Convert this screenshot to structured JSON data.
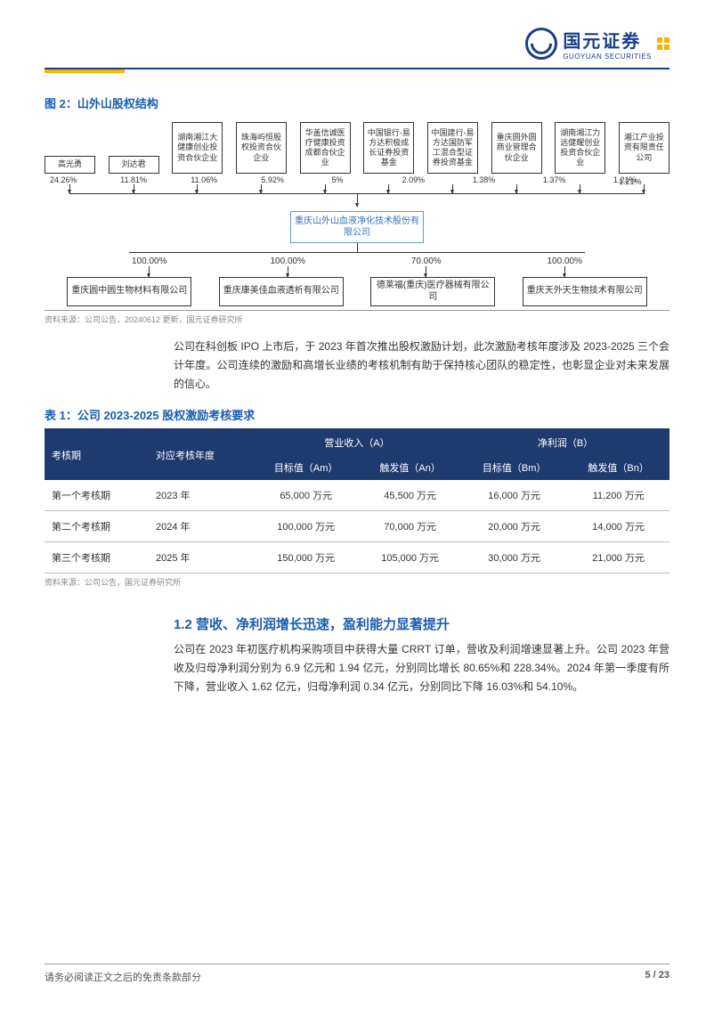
{
  "logo": {
    "cn": "国元证券",
    "en": "GUOYUAN SECURITIES"
  },
  "figure2": {
    "title": "图 2：山外山股权结构",
    "shareholders": [
      {
        "name": "高光勇",
        "pct": "24.26%"
      },
      {
        "name": "刘达君",
        "pct": "11.81%"
      },
      {
        "name": "湖南湘江大健康创业投资合伙企业",
        "pct": "11.06%"
      },
      {
        "name": "珠海屿恒股权投资合伙企业",
        "pct": "5.92%"
      },
      {
        "name": "华盖信诚医疗健康投资成都合伙企业",
        "pct": "5%"
      },
      {
        "name": "中国银行-易方达积极成长证券投资基金",
        "pct": "2.09%"
      },
      {
        "name": "中国建行-易方达国防军工混合型证券投资基金",
        "pct": "1.38%"
      },
      {
        "name": "重庆圆外圆商业管理合伙企业",
        "pct": "1.37%"
      },
      {
        "name": "湖南湘江力远健耀创业投资合伙企业",
        "pct": "1.21%"
      },
      {
        "name": "湘江产业投资有限责任公司",
        "pct": "1.21%"
      }
    ],
    "center": "重庆山外山血液净化技术股份有限公司",
    "subs": [
      {
        "name": "重庆圆中圆生物材料有限公司",
        "pct": "100.00%"
      },
      {
        "name": "重庆康美佳血液透析有限公司",
        "pct": "100.00%"
      },
      {
        "name": "德莱福(重庆)医疗器械有限公司",
        "pct": "70.00%"
      },
      {
        "name": "重庆天外天生物技术有限公司",
        "pct": "100.00%"
      }
    ],
    "source": "资料来源：公司公告，20240612 更新，国元证券研究所"
  },
  "para1": "公司在科创板 IPO 上市后，于 2023 年首次推出股权激励计划，此次激励考核年度涉及 2023-2025 三个会计年度。公司连续的激励和高增长业绩的考核机制有助于保持核心团队的稳定性，也彰显企业对未来发展的信心。",
  "table1": {
    "title": "表 1：公司 2023-2025 股权激励考核要求",
    "header1": [
      "考核期",
      "对应考核年度",
      "营业收入（A）",
      "净利润（B）"
    ],
    "header2": [
      "目标值（Am）",
      "触发值（An）",
      "目标值（Bm）",
      "触发值（Bn）"
    ],
    "rows": [
      [
        "第一个考核期",
        "2023 年",
        "65,000 万元",
        "45,500 万元",
        "16,000 万元",
        "11,200 万元"
      ],
      [
        "第二个考核期",
        "2024 年",
        "100,000 万元",
        "70,000 万元",
        "20,000 万元",
        "14,000 万元"
      ],
      [
        "第三个考核期",
        "2025 年",
        "150,000 万元",
        "105,000 万元",
        "30,000 万元",
        "21,000 万元"
      ]
    ],
    "source": "资料来源：公司公告，国元证券研究所"
  },
  "section12": {
    "heading": "1.2 营收、净利润增长迅速，盈利能力显著提升",
    "body": "公司在 2023 年初医疗机构采购项目中获得大量 CRRT 订单，营收及利润增速显著上升。公司 2023 年营收及归母净利润分别为 6.9 亿元和 1.94 亿元，分别同比增长 80.65%和 228.34%。2024 年第一季度有所下降，营业收入 1.62 亿元，归母净利润 0.34 亿元，分别同比下降 16.03%和 54.10%。"
  },
  "footer": {
    "disclaimer": "请务必阅读正文之后的免责条款部分",
    "page": "5 / 23"
  },
  "colors": {
    "brand_blue": "#1a3e8c",
    "heading_blue": "#1a5db0",
    "accent_yellow": "#f5b400",
    "table_header": "#1f3a6e"
  }
}
